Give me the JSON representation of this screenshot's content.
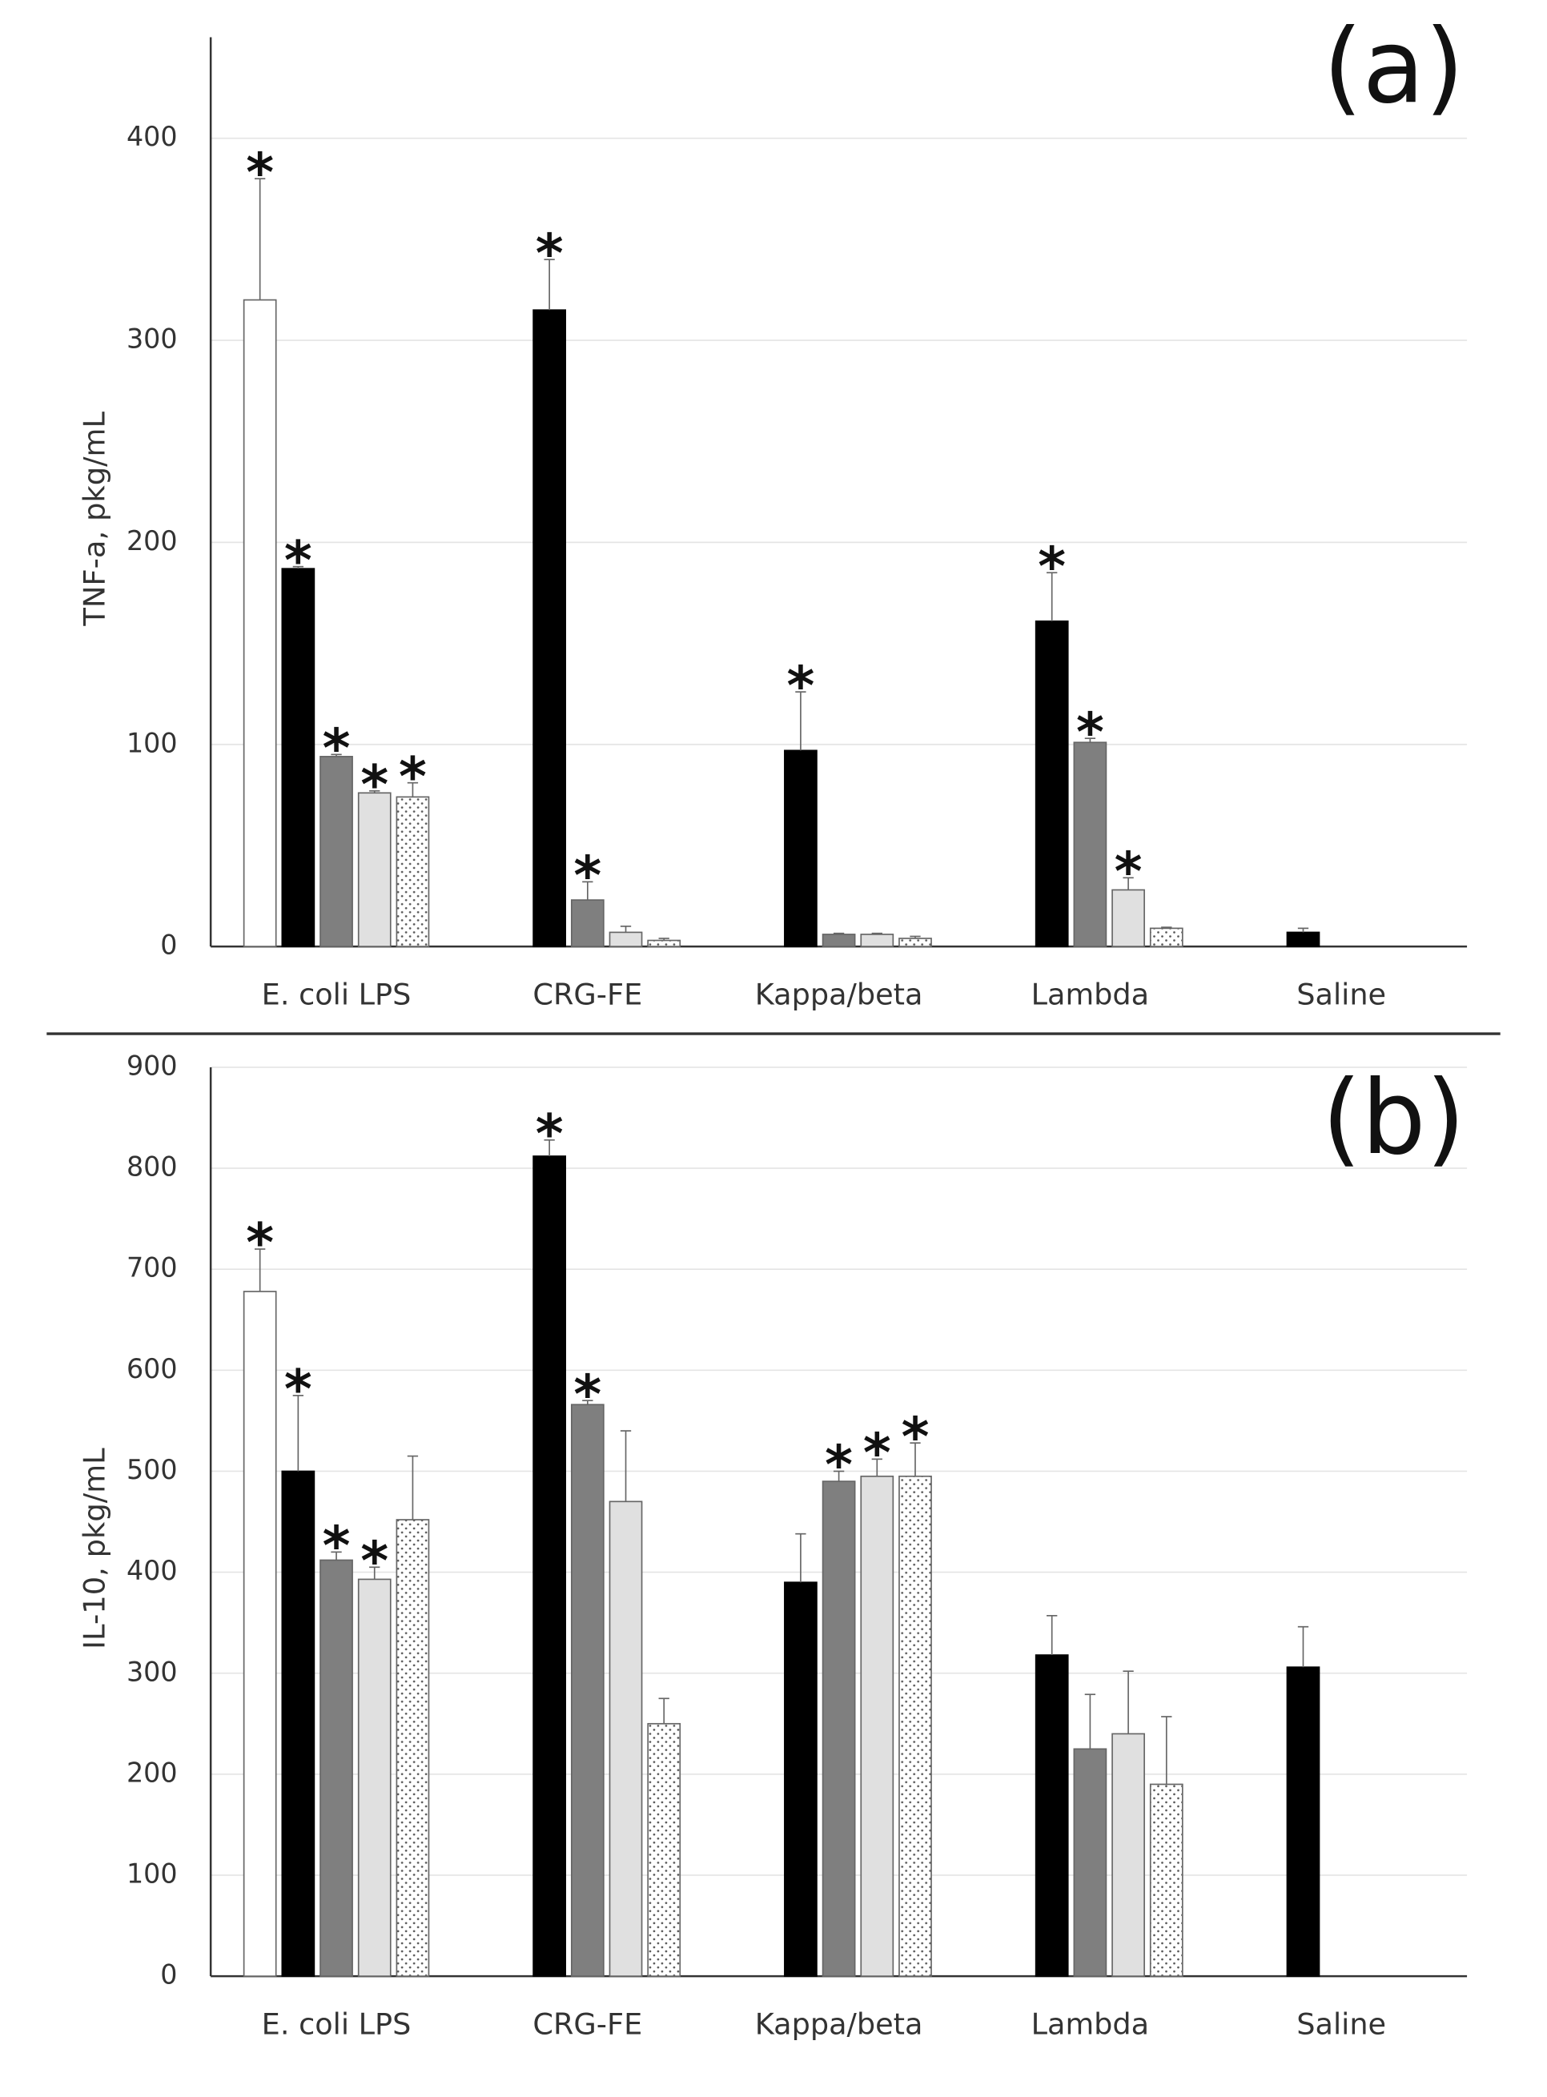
{
  "chart_data": [
    {
      "type": "bar",
      "panel_label": "(a)",
      "ylabel": "TNF-a, pkg/mL",
      "categories": [
        "E. coli LPS",
        "CRG-FE",
        "Kappa/beta",
        "Lambda",
        "Saline"
      ],
      "ylim": [
        0,
        450
      ],
      "yticks": [
        0,
        100,
        200,
        300,
        400
      ],
      "grid": true,
      "series": [
        {
          "color": "#ffffff",
          "values": [
            320,
            null,
            null,
            null,
            null
          ],
          "errors": [
            60,
            null,
            null,
            null,
            null
          ],
          "markers": [
            "*",
            null,
            null,
            null,
            null
          ]
        },
        {
          "color": "#000000",
          "values": [
            187,
            315,
            97,
            161,
            7
          ],
          "errors": [
            1,
            25,
            29,
            24,
            2
          ],
          "markers": [
            "*",
            "*",
            "*",
            "*",
            null
          ]
        },
        {
          "color": "#7f7f7f",
          "values": [
            94,
            23,
            6,
            101,
            null
          ],
          "errors": [
            1,
            9,
            0.5,
            2,
            null
          ],
          "markers": [
            "*",
            "*",
            null,
            "*",
            null
          ]
        },
        {
          "color": "#e0e0e0",
          "values": [
            76,
            7,
            6,
            28,
            null
          ],
          "errors": [
            1,
            3,
            0.5,
            6,
            null
          ],
          "markers": [
            "*",
            null,
            null,
            "*",
            null
          ]
        },
        {
          "color": "#ffffff",
          "pattern": "dots",
          "values": [
            74,
            3,
            4,
            9,
            null
          ],
          "errors": [
            7,
            1,
            1,
            0.5,
            null
          ],
          "markers": [
            "*",
            null,
            null,
            null,
            null
          ]
        }
      ]
    },
    {
      "type": "bar",
      "panel_label": "(b)",
      "ylabel": "IL-10, pkg/mL",
      "categories": [
        "E. coli LPS",
        "CRG-FE",
        "Kappa/beta",
        "Lambda",
        "Saline"
      ],
      "ylim": [
        0,
        900
      ],
      "yticks": [
        0,
        100,
        200,
        300,
        400,
        500,
        600,
        700,
        800,
        900
      ],
      "grid": true,
      "series": [
        {
          "color": "#ffffff",
          "values": [
            678,
            null,
            null,
            null,
            null
          ],
          "errors": [
            42,
            null,
            null,
            null,
            null
          ],
          "markers": [
            "*",
            null,
            null,
            null,
            null
          ]
        },
        {
          "color": "#000000",
          "values": [
            500,
            812,
            390,
            318,
            306
          ],
          "errors": [
            75,
            16,
            48,
            39,
            40
          ],
          "markers": [
            "*",
            "*",
            null,
            null,
            null
          ]
        },
        {
          "color": "#7f7f7f",
          "values": [
            412,
            566,
            490,
            225,
            null
          ],
          "errors": [
            8,
            4,
            10,
            54,
            null
          ],
          "markers": [
            "*",
            "*",
            "*",
            null,
            null
          ]
        },
        {
          "color": "#e0e0e0",
          "values": [
            393,
            470,
            495,
            240,
            null
          ],
          "errors": [
            12,
            70,
            17,
            62,
            null
          ],
          "markers": [
            "*",
            null,
            "*",
            null,
            null
          ]
        },
        {
          "color": "#ffffff",
          "pattern": "dots",
          "values": [
            452,
            250,
            495,
            190,
            null
          ],
          "errors": [
            63,
            25,
            33,
            67,
            null
          ],
          "markers": [
            null,
            null,
            "*",
            null,
            null
          ]
        }
      ]
    }
  ]
}
